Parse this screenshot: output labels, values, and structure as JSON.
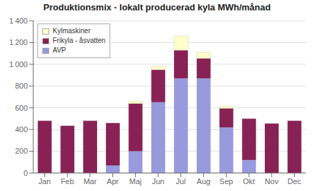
{
  "chart_data": {
    "type": "bar",
    "stacked": true,
    "title": "Produktionsmix - lokalt producerad kyla MWh/månad",
    "categories": [
      "Jan",
      "Feb",
      "Mar",
      "Apr",
      "Maj",
      "Jun",
      "Jul",
      "Aug",
      "Sep",
      "Okt",
      "Nov",
      "Dec"
    ],
    "series": [
      {
        "name": "AVP",
        "color": "#9999dd",
        "values": [
          0,
          0,
          0,
          70,
          200,
          650,
          870,
          870,
          420,
          120,
          0,
          0
        ]
      },
      {
        "name": "Frikyla - åsvatten",
        "color": "#882255",
        "values": [
          480,
          435,
          480,
          390,
          440,
          300,
          260,
          185,
          175,
          380,
          455,
          480
        ]
      },
      {
        "name": "Kylmaskiner",
        "color": "#ffffcc",
        "values": [
          0,
          0,
          0,
          0,
          20,
          30,
          130,
          55,
          20,
          0,
          0,
          0
        ]
      }
    ],
    "ylim": [
      0,
      1400
    ],
    "yticks": [
      0,
      200,
      400,
      600,
      800,
      {
        "value": 1000,
        "label": "1 000"
      },
      {
        "value": 1200,
        "label": "1 200"
      },
      {
        "value": 1400,
        "label": "1 400"
      }
    ],
    "grid": true,
    "legend": "upper left"
  }
}
